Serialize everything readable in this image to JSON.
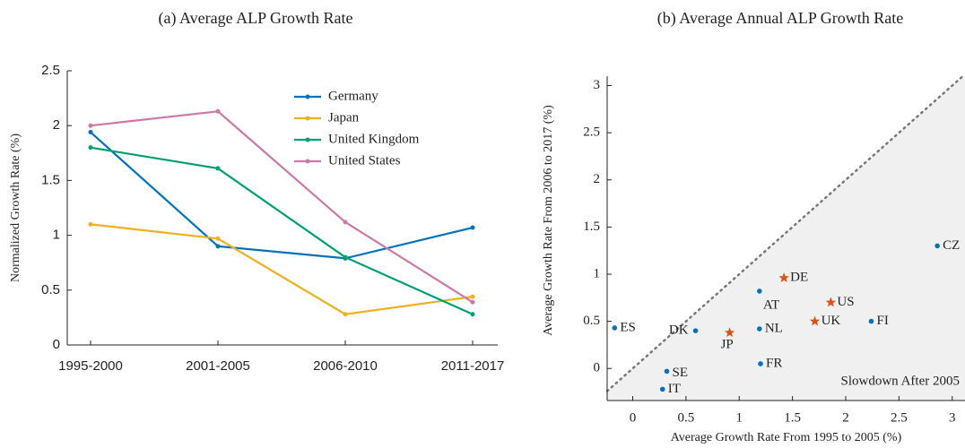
{
  "chart_data": [
    {
      "type": "line",
      "title": "(a) Average ALP Growth Rate",
      "y_label": "Normalized Growth Rate (%)",
      "categories": [
        "1995-2000",
        "2001-2005",
        "2006-2010",
        "2011-2017"
      ],
      "series": [
        {
          "name": "Germany",
          "color": "#0072bd",
          "values": [
            1.94,
            0.9,
            0.79,
            1.07
          ]
        },
        {
          "name": "Japan",
          "color": "#edb120",
          "values": [
            1.1,
            0.97,
            0.28,
            0.44
          ]
        },
        {
          "name": "United Kingdom",
          "color": "#009e73",
          "values": [
            1.8,
            1.61,
            0.8,
            0.28
          ]
        },
        {
          "name": "United States",
          "color": "#cc79a7",
          "values": [
            2.0,
            2.13,
            1.12,
            0.39
          ]
        }
      ],
      "ylim": [
        0,
        2.5
      ],
      "yticks": [
        0,
        0.5,
        1,
        1.5,
        2,
        2.5
      ],
      "legend": "upper right",
      "grid": false
    },
    {
      "type": "scatter",
      "title": "(b) Average Annual ALP Growth Rate",
      "x_label": "Average Growth Rate From 1995 to 2005 (%)",
      "y_label": "Average Growth Rate From 2006 to 2017 (%)",
      "annotation": "Slowdown After 2005",
      "series": [
        {
          "color": "#0072bd",
          "marker": "dot",
          "labels": [
            "ES",
            "SE",
            "IT",
            "DK",
            "AT",
            "NL",
            "FR",
            "FI",
            "CZ"
          ],
          "x": [
            -0.17,
            0.32,
            0.28,
            0.59,
            1.19,
            1.19,
            1.2,
            2.24,
            2.86
          ],
          "y": [
            0.43,
            -0.03,
            -0.22,
            0.4,
            0.82,
            0.42,
            0.05,
            0.5,
            1.3
          ]
        },
        {
          "color": "#d95319",
          "marker": "star",
          "labels": [
            "JP",
            "DE",
            "UK",
            "US"
          ],
          "x": [
            0.91,
            1.42,
            1.71,
            1.86
          ],
          "y": [
            0.38,
            0.96,
            0.5,
            0.7
          ]
        }
      ],
      "xlim": [
        -0.24,
        3.12
      ],
      "xticks": [
        0,
        0.5,
        1,
        1.5,
        2,
        2.5,
        3
      ],
      "ylim": [
        -0.34,
        3.1
      ],
      "yticks": [
        0,
        0.5,
        1,
        1.5,
        2,
        2.5,
        3
      ],
      "diagonal": true,
      "grid": false
    }
  ]
}
